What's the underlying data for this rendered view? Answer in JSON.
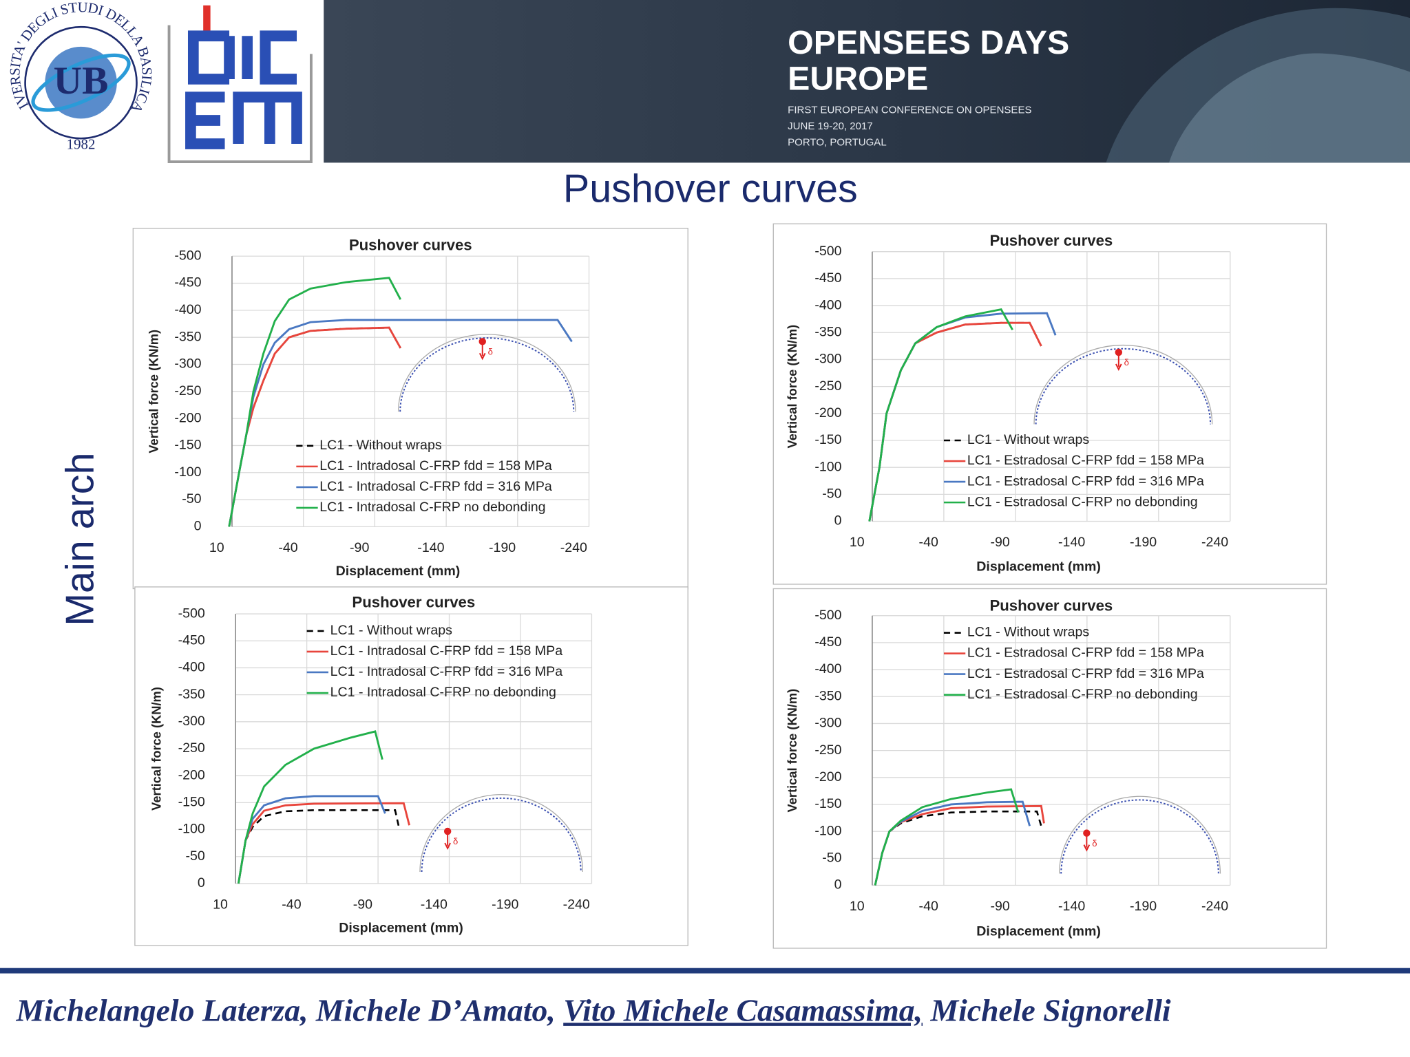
{
  "header": {
    "university": "UNIVERSITA' DEGLI STUDI DELLA BASILICATA",
    "university_year": "1982",
    "conference_title": [
      "OPENSEES DAYS",
      "EUROPE"
    ],
    "conference_lines": [
      "FIRST EUROPEAN CONFERENCE ON OPENSEES",
      "JUNE 19-20, 2017",
      "PORTO, PORTUGAL"
    ]
  },
  "slide_title": "Pushover curves",
  "side_label": "Main arch",
  "authors": [
    {
      "text": "Michelangelo Laterza, Michele D’Amato, ",
      "underline": false
    },
    {
      "text": "Vito Michele Casamassima,",
      "underline": true
    },
    {
      "text": " Michele Signorelli",
      "underline": false
    }
  ],
  "chart_data": [
    {
      "type": "line",
      "title": "Pushover curves",
      "xlabel": "Displacement (mm)",
      "ylabel": "Vertical force (KN/m)",
      "annotation": "δ",
      "xlim": [
        10,
        -240
      ],
      "xticks": [
        10,
        -40,
        -90,
        -140,
        -190,
        -240
      ],
      "ylim": [
        0,
        -500
      ],
      "yticks": [
        0,
        -50,
        -100,
        -150,
        -200,
        -250,
        -300,
        -350,
        -400,
        -450,
        -500
      ],
      "grid": true,
      "legend": "lower-center",
      "series": [
        {
          "name": "LC1 - Without wraps",
          "color": "#000000",
          "dashed": true,
          "x": [
            12,
            5,
            0,
            -5,
            -12,
            -20,
            -30,
            -45,
            -70,
            -100,
            -108
          ],
          "values": [
            0,
            -100,
            -170,
            -220,
            -270,
            -320,
            -350,
            -362,
            -366,
            -368,
            -330
          ]
        },
        {
          "name": "LC1 - Intradosal C-FRP fdd = 158 MPa",
          "color": "#e8453c",
          "dashed": false,
          "x": [
            12,
            5,
            0,
            -5,
            -12,
            -20,
            -30,
            -45,
            -70,
            -100,
            -108
          ],
          "values": [
            0,
            -100,
            -170,
            -220,
            -270,
            -320,
            -350,
            -362,
            -366,
            -368,
            -330
          ]
        },
        {
          "name": "LC1 - Intradosal C-FRP fdd = 316 MPa",
          "color": "#4a78c2",
          "dashed": false,
          "x": [
            12,
            5,
            0,
            -5,
            -12,
            -20,
            -30,
            -45,
            -70,
            -218,
            -228
          ],
          "values": [
            0,
            -100,
            -170,
            -240,
            -300,
            -340,
            -365,
            -378,
            -382,
            -382,
            -342
          ]
        },
        {
          "name": "LC1 - Intradosal C-FRP no debonding",
          "color": "#22b04b",
          "dashed": false,
          "x": [
            12,
            5,
            0,
            -5,
            -12,
            -20,
            -30,
            -45,
            -70,
            -100,
            -108
          ],
          "values": [
            0,
            -100,
            -170,
            -250,
            -320,
            -380,
            -420,
            -440,
            -452,
            -460,
            -420
          ]
        }
      ]
    },
    {
      "type": "line",
      "title": "Pushover curves",
      "xlabel": "Displacement (mm)",
      "ylabel": "Vertical force (KN/m)",
      "annotation": "δ",
      "xlim": [
        10,
        -240
      ],
      "xticks": [
        10,
        -40,
        -90,
        -140,
        -190,
        -240
      ],
      "ylim": [
        0,
        -500
      ],
      "yticks": [
        0,
        -50,
        -100,
        -150,
        -200,
        -250,
        -300,
        -350,
        -400,
        -450,
        -500
      ],
      "grid": true,
      "legend": "lower-right",
      "series": [
        {
          "name": "LC1 - Without wraps",
          "color": "#000000",
          "dashed": true,
          "x": [
            12,
            5,
            0,
            -10,
            -20,
            -35,
            -55,
            -80,
            -100,
            -108
          ],
          "values": [
            0,
            -100,
            -200,
            -280,
            -330,
            -350,
            -365,
            -368,
            -368,
            -325
          ]
        },
        {
          "name": "LC1 - Estradosal C-FRP fdd = 158 MPa",
          "color": "#e8453c",
          "dashed": false,
          "x": [
            12,
            5,
            0,
            -10,
            -20,
            -35,
            -55,
            -80,
            -100,
            -108
          ],
          "values": [
            0,
            -100,
            -200,
            -280,
            -330,
            -350,
            -365,
            -368,
            -368,
            -325
          ]
        },
        {
          "name": "LC1 - Estradosal C-FRP fdd = 316 MPa",
          "color": "#4a78c2",
          "dashed": false,
          "x": [
            12,
            5,
            0,
            -10,
            -20,
            -35,
            -55,
            -80,
            -112,
            -118
          ],
          "values": [
            0,
            -100,
            -200,
            -280,
            -330,
            -360,
            -378,
            -385,
            -386,
            -345
          ]
        },
        {
          "name": "LC1 - Estradosal C-FRP no debonding",
          "color": "#22b04b",
          "dashed": false,
          "x": [
            12,
            5,
            0,
            -10,
            -20,
            -35,
            -55,
            -80,
            -88
          ],
          "values": [
            0,
            -100,
            -200,
            -280,
            -330,
            -360,
            -380,
            -393,
            -355
          ]
        }
      ]
    },
    {
      "type": "line",
      "title": "Pushover curves",
      "xlabel": "Displacement (mm)",
      "ylabel": "Vertical force (KN/m)",
      "annotation": "δ",
      "xlim": [
        10,
        -240
      ],
      "xticks": [
        10,
        -40,
        -90,
        -140,
        -190,
        -240
      ],
      "ylim": [
        0,
        -500
      ],
      "yticks": [
        0,
        -50,
        -100,
        -150,
        -200,
        -250,
        -300,
        -350,
        -400,
        -450,
        -500
      ],
      "grid": true,
      "legend": "upper-right",
      "series": [
        {
          "name": "LC1 - Without wraps",
          "color": "#000000",
          "dashed": true,
          "x": [
            8,
            3,
            -2,
            -10,
            -25,
            -45,
            -102,
            -105
          ],
          "values": [
            0,
            -80,
            -105,
            -125,
            -134,
            -136,
            -136,
            -100
          ]
        },
        {
          "name": "LC1 - Intradosal C-FRP fdd = 158 MPa",
          "color": "#e8453c",
          "dashed": false,
          "x": [
            8,
            3,
            -2,
            -10,
            -25,
            -45,
            -108,
            -112
          ],
          "values": [
            0,
            -80,
            -110,
            -135,
            -145,
            -148,
            -149,
            -108
          ]
        },
        {
          "name": "LC1 - Intradosal C-FRP fdd = 316 MPa",
          "color": "#4a78c2",
          "dashed": false,
          "x": [
            8,
            3,
            -2,
            -10,
            -25,
            -45,
            -90,
            -95
          ],
          "values": [
            0,
            -80,
            -120,
            -145,
            -158,
            -162,
            -162,
            -130
          ]
        },
        {
          "name": "LC1 - Intradosal C-FRP no debonding",
          "color": "#22b04b",
          "dashed": false,
          "x": [
            8,
            3,
            -2,
            -10,
            -25,
            -45,
            -70,
            -88,
            -93
          ],
          "values": [
            0,
            -80,
            -130,
            -180,
            -220,
            -250,
            -270,
            -282,
            -230
          ]
        }
      ]
    },
    {
      "type": "line",
      "title": "Pushover curves",
      "xlabel": "Displacement (mm)",
      "ylabel": "Vertical force (KN/m)",
      "annotation": "δ",
      "xlim": [
        10,
        -240
      ],
      "xticks": [
        10,
        -40,
        -90,
        -140,
        -190,
        -240
      ],
      "ylim": [
        0,
        -500
      ],
      "yticks": [
        0,
        -50,
        -100,
        -150,
        -200,
        -250,
        -300,
        -350,
        -400,
        -450,
        -500
      ],
      "grid": true,
      "legend": "upper-right",
      "series": [
        {
          "name": "LC1 - Without wraps",
          "color": "#000000",
          "dashed": true,
          "x": [
            8,
            3,
            -2,
            -10,
            -25,
            -45,
            -70,
            -105,
            -108
          ],
          "values": [
            0,
            -60,
            -100,
            -115,
            -128,
            -135,
            -137,
            -137,
            -110
          ]
        },
        {
          "name": "LC1 - Estradosal C-FRP fdd = 158 MPa",
          "color": "#e8453c",
          "dashed": false,
          "x": [
            8,
            3,
            -2,
            -10,
            -25,
            -45,
            -70,
            -108,
            -110
          ],
          "values": [
            0,
            -60,
            -100,
            -117,
            -132,
            -143,
            -146,
            -147,
            -115
          ]
        },
        {
          "name": "LC1 - Estradosal C-FRP fdd = 316 MPa",
          "color": "#4a78c2",
          "dashed": false,
          "x": [
            8,
            3,
            -2,
            -10,
            -25,
            -45,
            -70,
            -95,
            -100
          ],
          "values": [
            0,
            -60,
            -100,
            -118,
            -138,
            -150,
            -154,
            -155,
            -110
          ]
        },
        {
          "name": "LC1 - Estradosal C-FRP no debonding",
          "color": "#22b04b",
          "dashed": false,
          "x": [
            8,
            3,
            -2,
            -10,
            -25,
            -45,
            -70,
            -87,
            -92
          ],
          "values": [
            0,
            -60,
            -100,
            -120,
            -145,
            -160,
            -172,
            -178,
            -135
          ]
        }
      ]
    }
  ]
}
